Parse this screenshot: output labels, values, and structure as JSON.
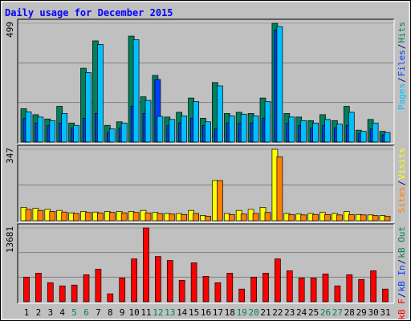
{
  "title": "Daily usage for December 2015",
  "legend_separator": "/",
  "chart_data": [
    {
      "type": "bar",
      "ylim": [
        0,
        499
      ],
      "yticks": [
        499
      ],
      "grid_divisions": 3,
      "series": [
        {
          "name": "Hits",
          "color": "#00805c",
          "values": [
            140,
            115,
            97,
            150,
            80,
            310,
            425,
            70,
            85,
            445,
            190,
            280,
            105,
            125,
            185,
            100,
            250,
            120,
            125,
            120,
            185,
            499,
            120,
            105,
            90,
            115,
            90,
            150,
            50,
            95,
            45
          ]
        },
        {
          "name": "Files",
          "color": "#0040ff",
          "values": [
            100,
            80,
            70,
            80,
            60,
            100,
            120,
            40,
            60,
            150,
            120,
            263,
            70,
            80,
            100,
            70,
            55,
            80,
            80,
            80,
            100,
            470,
            80,
            70,
            60,
            70,
            60,
            70,
            35,
            55,
            30
          ]
        },
        {
          "name": "Pages",
          "color": "#00c0ff",
          "values": [
            127,
            105,
            90,
            120,
            70,
            292,
            410,
            55,
            80,
            430,
            175,
            108,
            95,
            110,
            170,
            85,
            236,
            110,
            117,
            110,
            170,
            485,
            105,
            90,
            80,
            95,
            75,
            125,
            45,
            80,
            40
          ]
        }
      ]
    },
    {
      "type": "bar",
      "ylim": [
        0,
        347
      ],
      "yticks": [
        347
      ],
      "grid_divisions": 2,
      "series": [
        {
          "name": "Visits",
          "color": "#ffff00",
          "values": [
            65,
            60,
            55,
            50,
            38,
            45,
            42,
            45,
            45,
            45,
            50,
            40,
            35,
            35,
            50,
            25,
            195,
            35,
            50,
            55,
            65,
            347,
            35,
            32,
            35,
            40,
            35,
            45,
            30,
            28,
            25
          ]
        },
        {
          "name": "Sites",
          "color": "#ff8000",
          "values": [
            55,
            50,
            45,
            42,
            35,
            40,
            38,
            40,
            38,
            40,
            38,
            35,
            32,
            30,
            35,
            22,
            195,
            30,
            32,
            35,
            40,
            310,
            30,
            28,
            30,
            30,
            28,
            30,
            28,
            25,
            22
          ]
        }
      ]
    },
    {
      "type": "bar",
      "ylim": [
        0,
        13681
      ],
      "yticks": [
        13681
      ],
      "grid_divisions": 3,
      "categories": [
        "1",
        "2",
        "3",
        "4",
        "5",
        "6",
        "7",
        "8",
        "9",
        "10",
        "11",
        "12",
        "13",
        "14",
        "15",
        "16",
        "17",
        "18",
        "19",
        "20",
        "21",
        "22",
        "23",
        "24",
        "25",
        "26",
        "27",
        "28",
        "29",
        "30",
        "31"
      ],
      "category_colors": [
        "#000000",
        "#000000",
        "#000000",
        "#000000",
        "#00805c",
        "#00805c",
        "#000000",
        "#000000",
        "#000000",
        "#000000",
        "#000000",
        "#00805c",
        "#00805c",
        "#000000",
        "#000000",
        "#000000",
        "#000000",
        "#000000",
        "#00805c",
        "#00805c",
        "#000000",
        "#000000",
        "#000000",
        "#000000",
        "#000000",
        "#00805c",
        "#00805c",
        "#000000",
        "#000000",
        "#000000",
        "#000000"
      ],
      "series": [
        {
          "name": "kB Out",
          "color": "#00805c"
        },
        {
          "name": "kB In",
          "color": "#0040ff"
        },
        {
          "name": "kB F",
          "color": "#ff0000",
          "values": [
            4560,
            5300,
            3530,
            2940,
            3090,
            5000,
            6030,
            1470,
            4410,
            7940,
            13681,
            8380,
            7650,
            3970,
            7210,
            4710,
            3530,
            5300,
            2350,
            4560,
            5300,
            7940,
            5740,
            4410,
            4410,
            5150,
            2940,
            5000,
            4120,
            5740,
            2350
          ]
        }
      ]
    }
  ]
}
